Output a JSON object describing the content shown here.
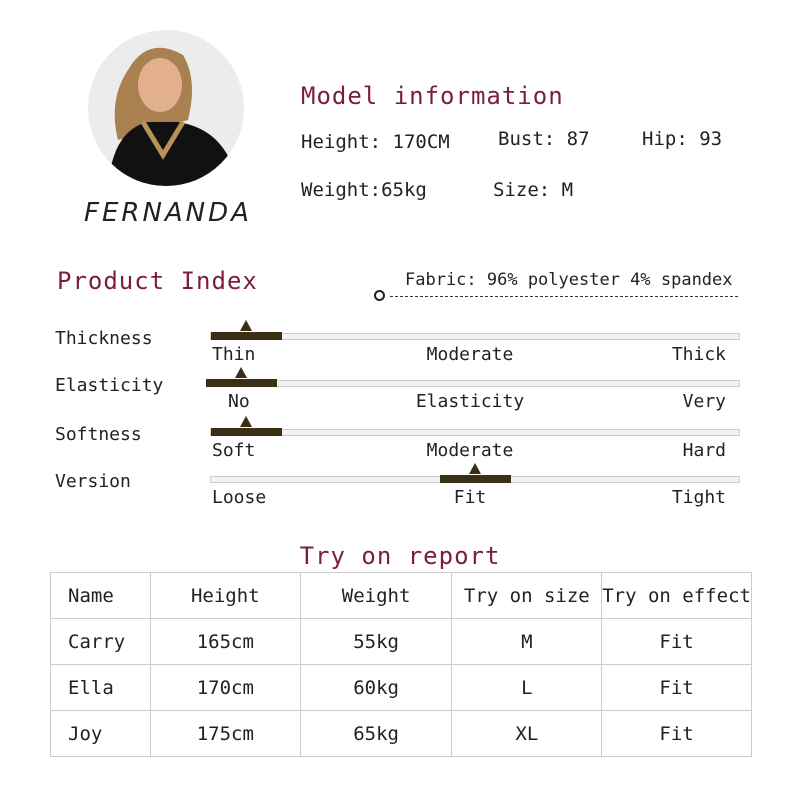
{
  "colors": {
    "title": "#7b1f36",
    "indicator": "#3a2e14",
    "track": "#f2f2f2"
  },
  "model": {
    "name": "FERNANDA",
    "photo": "model-portrait",
    "title": "Model information",
    "height": "Height: 170CM",
    "bust": "Bust: 87",
    "hip": "Hip: 93",
    "weight": "Weight:65kg",
    "size": "Size: M"
  },
  "product": {
    "title": "Product Index",
    "fabric": "Fabric: 96% polyester 4% spandex",
    "indices": [
      {
        "name": "Thickness",
        "left": "Thin",
        "middle": "Moderate",
        "right": "Thick",
        "level": 0
      },
      {
        "name": "Elasticity",
        "left": "No",
        "middle": "Elasticity",
        "right": "Very",
        "level": 0
      },
      {
        "name": "Softness",
        "left": "Soft",
        "middle": "Moderate",
        "right": "Hard",
        "level": 0
      },
      {
        "name": "Version",
        "left": "Loose",
        "middle": "Fit",
        "right": "Tight",
        "level": 0.5
      }
    ]
  },
  "report": {
    "title": "Try on report",
    "headers": [
      "Name",
      "Height",
      "Weight",
      "Try on size",
      "Try on effect"
    ],
    "rows": [
      [
        "Carry",
        "165cm",
        "55kg",
        "M",
        "Fit"
      ],
      [
        "Ella",
        "170cm",
        "60kg",
        "L",
        "Fit"
      ],
      [
        "Joy",
        "175cm",
        "65kg",
        "XL",
        "Fit"
      ]
    ]
  }
}
